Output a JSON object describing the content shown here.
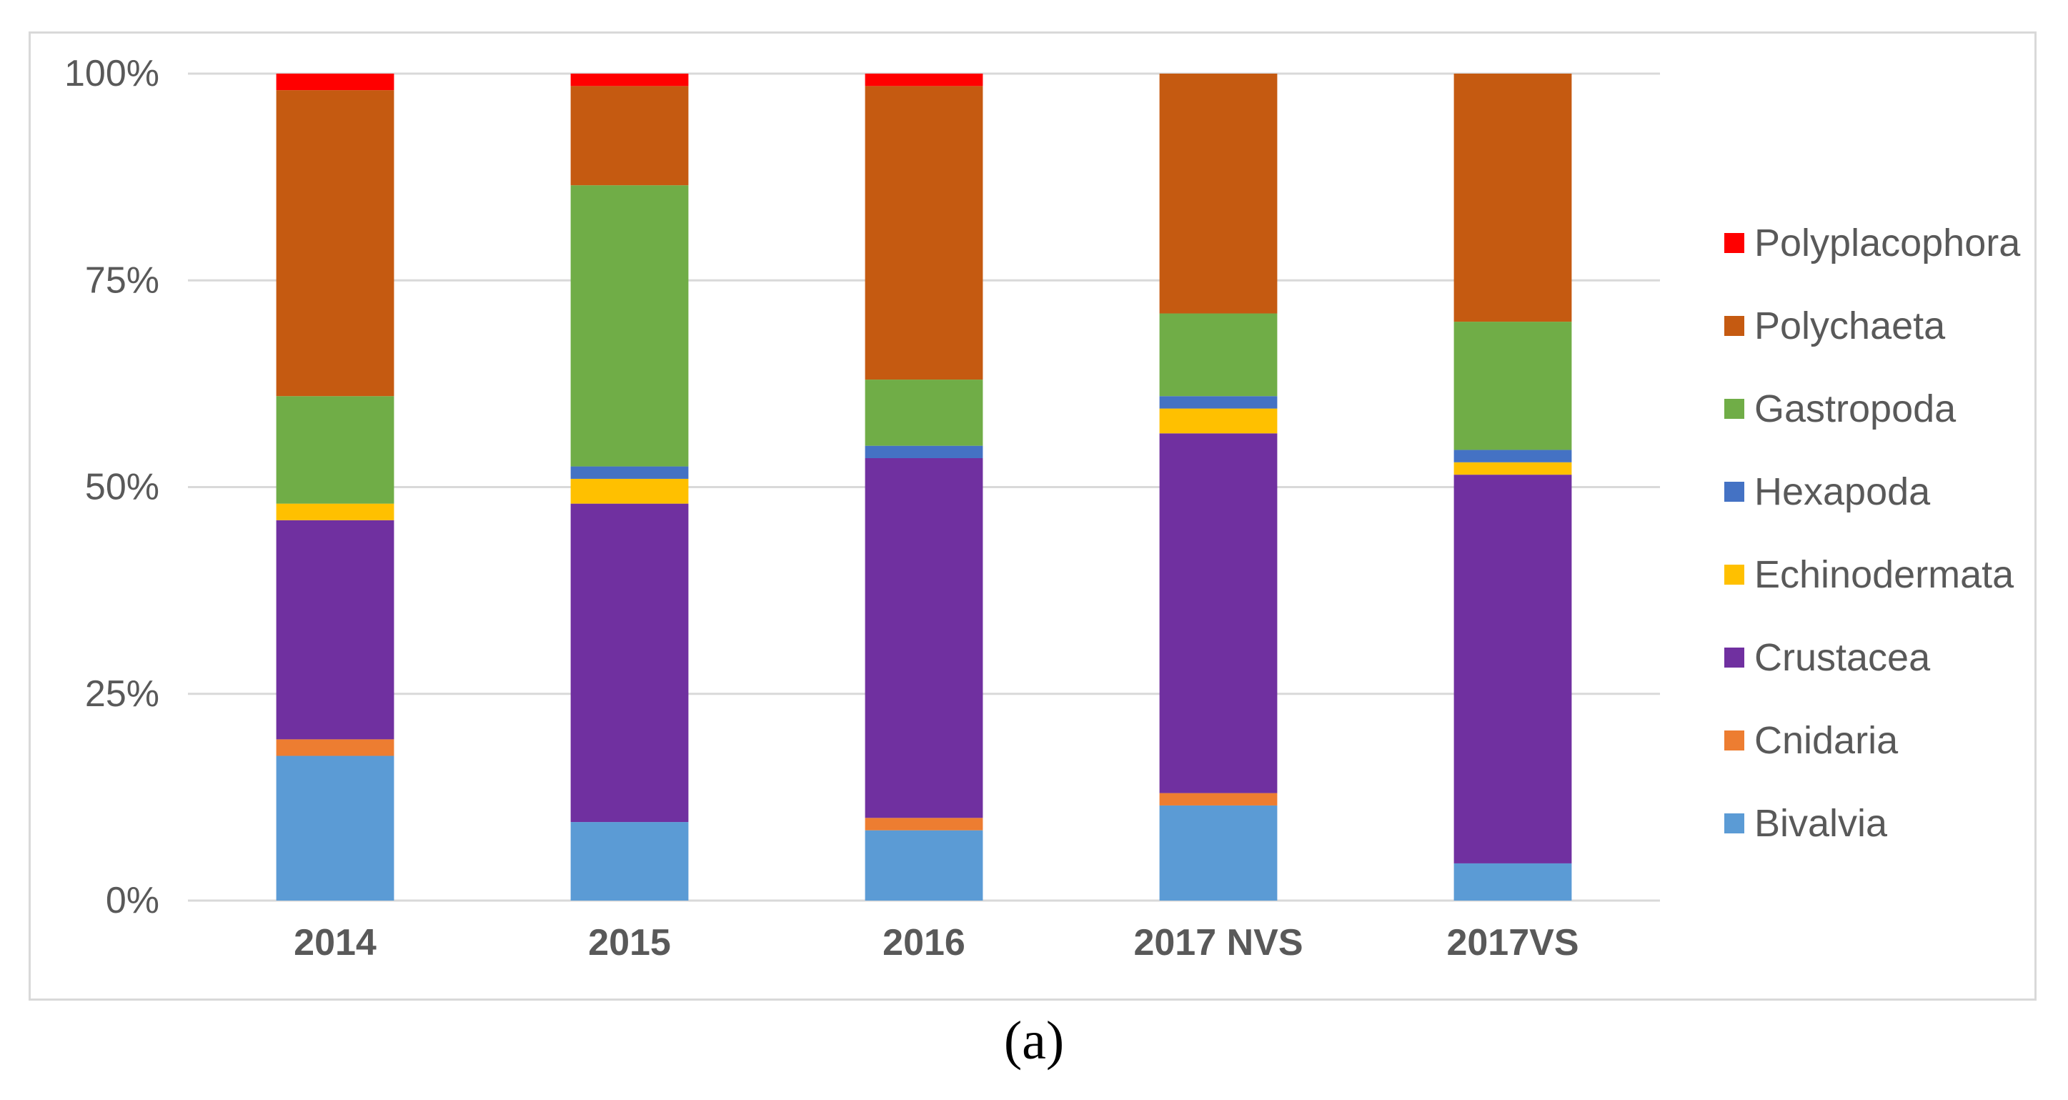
{
  "chart_data": {
    "type": "bar",
    "stacked": true,
    "percent_stacked": true,
    "title": "",
    "xlabel": "",
    "ylabel": "",
    "ylim": [
      0,
      100
    ],
    "yticks": [
      "0%",
      "25%",
      "50%",
      "75%",
      "100%"
    ],
    "ytick_values": [
      0,
      25,
      50,
      75,
      100
    ],
    "grid": true,
    "legend_position": "right",
    "categories": [
      "2014",
      "2015",
      "2016",
      "2017 NVS",
      "2017VS"
    ],
    "series": [
      {
        "name": "Bivalvia",
        "color": "#5b9bd5",
        "values": [
          17.5,
          9.5,
          8.5,
          11.5,
          4.5
        ]
      },
      {
        "name": "Cnidaria",
        "color": "#ed7d31",
        "values": [
          2.0,
          0.0,
          1.5,
          1.5,
          0.0
        ]
      },
      {
        "name": "Crustacea",
        "color": "#7030a0",
        "values": [
          26.5,
          38.5,
          43.5,
          43.5,
          47.0
        ]
      },
      {
        "name": "Echinodermata",
        "color": "#ffc000",
        "values": [
          2.0,
          3.0,
          0.0,
          3.0,
          1.5
        ]
      },
      {
        "name": "Hexapoda",
        "color": "#4472c4",
        "values": [
          0.0,
          1.5,
          1.5,
          1.5,
          1.5
        ]
      },
      {
        "name": "Gastropoda",
        "color": "#70ad47",
        "values": [
          13.0,
          34.0,
          8.0,
          10.0,
          15.5
        ]
      },
      {
        "name": "Polychaeta",
        "color": "#c55a11",
        "values": [
          37.0,
          12.0,
          35.5,
          29.0,
          30.0
        ]
      },
      {
        "name": "Polyplacophora",
        "color": "#ff0000",
        "values": [
          2.0,
          1.5,
          1.5,
          0.0,
          0.0
        ]
      }
    ]
  },
  "caption": "(a)"
}
